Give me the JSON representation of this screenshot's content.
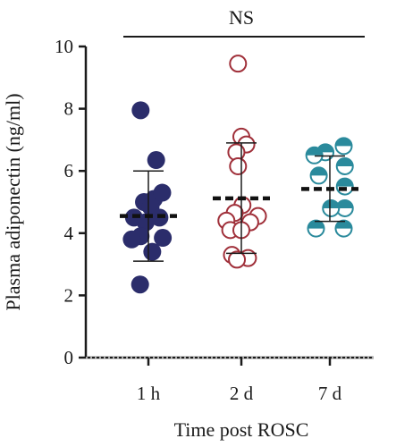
{
  "chart_data": {
    "type": "scatter",
    "xlabel": "Time post ROSC",
    "ylabel": "Plasma adiponectin (ng/ml)",
    "ylim": [
      0,
      10
    ],
    "yticks": [
      0,
      2,
      4,
      6,
      8,
      10
    ],
    "categories": [
      "1 h",
      "2 d",
      "7 d"
    ],
    "annotation": "NS",
    "grid": false,
    "groups": [
      {
        "category": "1 h",
        "color": "#2b2d6b",
        "marker": "filled-circle",
        "mean": 4.55,
        "sd_low": 3.1,
        "sd_high": 6.0,
        "points": [
          {
            "offset": -0.14,
            "y": 7.95
          },
          {
            "offset": 0.14,
            "y": 6.35
          },
          {
            "offset": -0.08,
            "y": 5.0
          },
          {
            "offset": 0.1,
            "y": 5.1
          },
          {
            "offset": 0.25,
            "y": 5.3
          },
          {
            "offset": 0.04,
            "y": 4.85
          },
          {
            "offset": -0.26,
            "y": 4.5
          },
          {
            "offset": -0.05,
            "y": 4.35
          },
          {
            "offset": 0.2,
            "y": 4.5
          },
          {
            "offset": 0.26,
            "y": 3.85
          },
          {
            "offset": -0.14,
            "y": 3.9
          },
          {
            "offset": -0.3,
            "y": 3.8
          },
          {
            "offset": 0.07,
            "y": 3.4
          },
          {
            "offset": -0.15,
            "y": 2.35
          }
        ]
      },
      {
        "category": "2 d",
        "color": "#a0303a",
        "marker": "open-circle",
        "mean": 5.12,
        "sd_low": 3.35,
        "sd_high": 6.9,
        "points": [
          {
            "offset": -0.06,
            "y": 9.45
          },
          {
            "offset": 0.0,
            "y": 7.1
          },
          {
            "offset": 0.09,
            "y": 6.85
          },
          {
            "offset": -0.09,
            "y": 6.6
          },
          {
            "offset": -0.06,
            "y": 6.15
          },
          {
            "offset": 0.02,
            "y": 4.9
          },
          {
            "offset": -0.12,
            "y": 4.65
          },
          {
            "offset": 0.3,
            "y": 4.55
          },
          {
            "offset": -0.27,
            "y": 4.4
          },
          {
            "offset": 0.16,
            "y": 4.35
          },
          {
            "offset": -0.2,
            "y": 4.1
          },
          {
            "offset": 0.0,
            "y": 4.1
          },
          {
            "offset": -0.17,
            "y": 3.3
          },
          {
            "offset": 0.12,
            "y": 3.2
          },
          {
            "offset": -0.08,
            "y": 3.15
          }
        ]
      },
      {
        "category": "7 d",
        "color": "#2a8a9c",
        "marker": "half-filled-circle",
        "mean": 5.42,
        "sd_low": 4.38,
        "sd_high": 6.48,
        "points": [
          {
            "offset": -0.08,
            "y": 6.6
          },
          {
            "offset": 0.25,
            "y": 6.8
          },
          {
            "offset": -0.28,
            "y": 6.5
          },
          {
            "offset": 0.27,
            "y": 6.15
          },
          {
            "offset": -0.2,
            "y": 5.85
          },
          {
            "offset": 0.27,
            "y": 5.5
          },
          {
            "offset": 0.27,
            "y": 4.8
          },
          {
            "offset": 0.02,
            "y": 4.8
          },
          {
            "offset": -0.25,
            "y": 4.15
          },
          {
            "offset": 0.25,
            "y": 4.15
          }
        ]
      }
    ]
  }
}
